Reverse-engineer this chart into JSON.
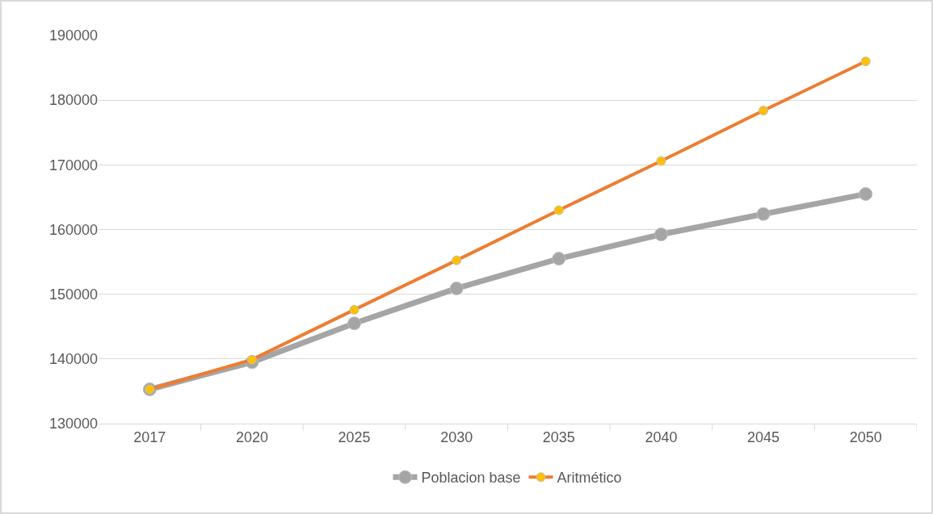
{
  "chart_data": {
    "type": "line",
    "categories": [
      "2017",
      "2020",
      "2025",
      "2030",
      "2035",
      "2040",
      "2045",
      "2050"
    ],
    "series": [
      {
        "name": "Poblacion base",
        "color": "#a5a5a5",
        "values": [
          135300,
          139500,
          145500,
          150900,
          155500,
          159250,
          162400,
          165500
        ]
      },
      {
        "name": "Aritmético",
        "color": "#ed7d31",
        "colors": [
          "#ffc000",
          "#ffc000",
          "#ffc000",
          "#ffc000",
          "#ffc000",
          "#ffc000",
          "#ffc000",
          "#ffc000"
        ],
        "values": [
          135300,
          139900,
          147600,
          155250,
          163000,
          170600,
          178400,
          186000
        ]
      }
    ],
    "ylim": [
      130000,
      190000
    ],
    "yticks": [
      130000,
      140000,
      150000,
      160000,
      170000,
      180000,
      190000
    ],
    "grid": "y",
    "legend": "bottom",
    "marker": "circle",
    "line_style": "solid"
  }
}
